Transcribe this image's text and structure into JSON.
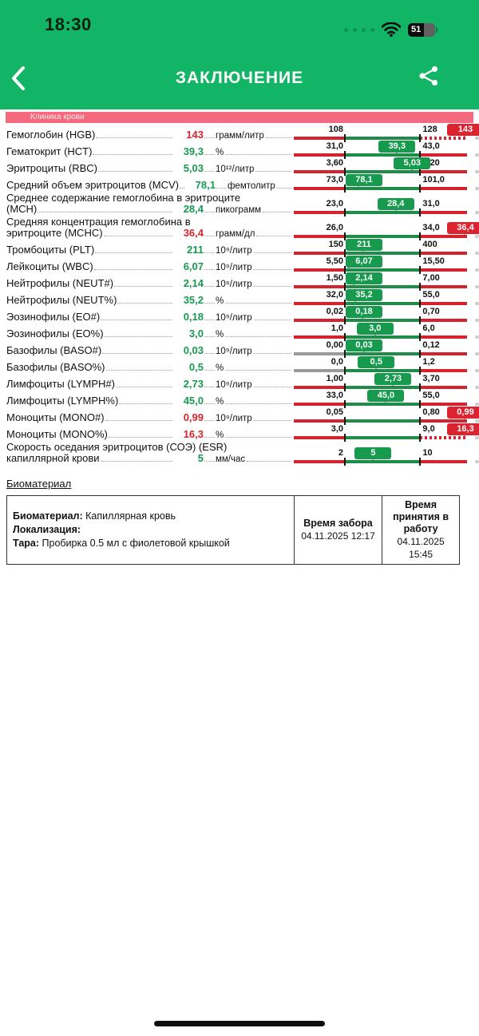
{
  "status_bar": {
    "time": "18:30",
    "battery_percent": "51"
  },
  "header": {
    "title": "ЗАКЛЮЧЕНИЕ"
  },
  "section": {
    "title": "Клиника крови"
  },
  "colors": {
    "accent_green": "#12b465",
    "band_pink": "#f4697d",
    "bar_red": "#d5232d",
    "bar_gray": "#9a9a9a",
    "bar_green": "#1e8c46",
    "badge_green": "#179a4e",
    "badge_red": "#dc2430",
    "value_green": "#179a50",
    "value_red": "#d6252e"
  },
  "rows": [
    {
      "name_lines": [
        "Гемоглобин (HGB)"
      ],
      "value": "143",
      "value_num": 143,
      "status": "high",
      "overflow_dotted": true,
      "left_gray": false,
      "unit": "грамм/литр",
      "min": "108",
      "max": "128",
      "min_num": 108,
      "max_num": 128
    },
    {
      "name_lines": [
        "Гематокрит (HCT)"
      ],
      "value": "39,3",
      "value_num": 39.3,
      "status": "normal",
      "overflow_dotted": false,
      "left_gray": false,
      "unit": "%",
      "min": "31,0",
      "max": "43,0",
      "min_num": 31.0,
      "max_num": 43.0
    },
    {
      "name_lines": [
        "Эритроциты (RBC)"
      ],
      "value": "5,03",
      "value_num": 5.03,
      "status": "normal",
      "overflow_dotted": false,
      "left_gray": false,
      "unit": "10¹²/литр",
      "min": "3,60",
      "max": "5,20",
      "min_num": 3.6,
      "max_num": 5.2
    },
    {
      "name_lines": [
        "Средний объем эритроцитов (MCV)"
      ],
      "value": "78,1",
      "value_num": 78.1,
      "status": "normal",
      "overflow_dotted": false,
      "left_gray": false,
      "unit": "фемтолитр",
      "min": "73,0",
      "max": "101,0",
      "min_num": 73.0,
      "max_num": 101.0
    },
    {
      "name_lines": [
        "Среднее содержание гемоглобина в эритроците",
        "(MCH)"
      ],
      "value": "28,4",
      "value_num": 28.4,
      "status": "normal",
      "overflow_dotted": false,
      "left_gray": false,
      "unit": "пикограмм",
      "min": "23,0",
      "max": "31,0",
      "min_num": 23.0,
      "max_num": 31.0
    },
    {
      "name_lines": [
        "Средняя концентрация гемоглобина в",
        "эритроците (MCHC)"
      ],
      "value": "36,4",
      "value_num": 36.4,
      "status": "high",
      "overflow_dotted": false,
      "left_gray": false,
      "unit": "грамм/дл",
      "min": "26,0",
      "max": "34,0",
      "min_num": 26.0,
      "max_num": 34.0
    },
    {
      "name_lines": [
        "Тромбоциты (PLT)"
      ],
      "value": "211",
      "value_num": 211,
      "status": "normal",
      "overflow_dotted": false,
      "left_gray": false,
      "unit": "10⁹/литр",
      "min": "150",
      "max": "400",
      "min_num": 150,
      "max_num": 400
    },
    {
      "name_lines": [
        "Лейкоциты (WBC)"
      ],
      "value": "6,07",
      "value_num": 6.07,
      "status": "normal",
      "overflow_dotted": false,
      "left_gray": false,
      "unit": "10⁹/литр",
      "min": "5,50",
      "max": "15,50",
      "min_num": 5.5,
      "max_num": 15.5
    },
    {
      "name_lines": [
        "Нейтрофилы (NEUT#)"
      ],
      "value": "2,14",
      "value_num": 2.14,
      "status": "normal",
      "overflow_dotted": false,
      "left_gray": false,
      "unit": "10⁹/литр",
      "min": "1,50",
      "max": "7,00",
      "min_num": 1.5,
      "max_num": 7.0
    },
    {
      "name_lines": [
        "Нейтрофилы (NEUT%)"
      ],
      "value": "35,2",
      "value_num": 35.2,
      "status": "normal",
      "overflow_dotted": false,
      "left_gray": false,
      "unit": "%",
      "min": "32,0",
      "max": "55,0",
      "min_num": 32.0,
      "max_num": 55.0
    },
    {
      "name_lines": [
        "Эозинофилы (EO#)"
      ],
      "value": "0,18",
      "value_num": 0.18,
      "status": "normal",
      "overflow_dotted": false,
      "left_gray": false,
      "unit": "10⁹/литр",
      "min": "0,02",
      "max": "0,70",
      "min_num": 0.02,
      "max_num": 0.7
    },
    {
      "name_lines": [
        "Эозинофилы (EO%)"
      ],
      "value": "3,0",
      "value_num": 3.0,
      "status": "normal",
      "overflow_dotted": false,
      "left_gray": false,
      "unit": "%",
      "min": "1,0",
      "max": "6,0",
      "min_num": 1.0,
      "max_num": 6.0
    },
    {
      "name_lines": [
        "Базофилы (BASO#)"
      ],
      "value": "0,03",
      "value_num": 0.03,
      "status": "normal",
      "overflow_dotted": false,
      "left_gray": true,
      "unit": "10⁹/литр",
      "min": "0,00",
      "max": "0,12",
      "min_num": 0.0,
      "max_num": 0.12
    },
    {
      "name_lines": [
        "Базофилы (BASO%)"
      ],
      "value": "0,5",
      "value_num": 0.5,
      "status": "normal",
      "overflow_dotted": false,
      "left_gray": true,
      "unit": "%",
      "min": "0,0",
      "max": "1,2",
      "min_num": 0.0,
      "max_num": 1.2
    },
    {
      "name_lines": [
        "Лимфоциты (LYMPH#)"
      ],
      "value": "2,73",
      "value_num": 2.73,
      "status": "normal",
      "overflow_dotted": false,
      "left_gray": false,
      "unit": "10⁹/литр",
      "min": "1,00",
      "max": "3,70",
      "min_num": 1.0,
      "max_num": 3.7
    },
    {
      "name_lines": [
        "Лимфоциты (LYMPH%)"
      ],
      "value": "45,0",
      "value_num": 45.0,
      "status": "normal",
      "overflow_dotted": false,
      "left_gray": false,
      "unit": "%",
      "min": "33,0",
      "max": "55,0",
      "min_num": 33.0,
      "max_num": 55.0
    },
    {
      "name_lines": [
        "Моноциты (MONO#)"
      ],
      "value": "0,99",
      "value_num": 0.99,
      "status": "high",
      "overflow_dotted": false,
      "left_gray": false,
      "unit": "10⁹/литр",
      "min": "0,05",
      "max": "0,80",
      "min_num": 0.05,
      "max_num": 0.8
    },
    {
      "name_lines": [
        "Моноциты (MONO%)"
      ],
      "value": "16,3",
      "value_num": 16.3,
      "status": "high",
      "overflow_dotted": true,
      "left_gray": false,
      "unit": "%",
      "min": "3,0",
      "max": "9,0",
      "min_num": 3.0,
      "max_num": 9.0
    },
    {
      "name_lines": [
        "Скорость оседания эритроцитов (СОЭ) (ESR)",
        "капиллярной крови"
      ],
      "value": "5",
      "value_num": 5,
      "status": "normal",
      "overflow_dotted": false,
      "left_gray": false,
      "unit": "мм/час",
      "min": "2",
      "max": "10",
      "min_num": 2,
      "max_num": 10
    }
  ],
  "biomaterial": {
    "heading": "Биоматериал",
    "info": [
      {
        "label": "Биоматериал:",
        "value": " Капиллярная кровь"
      },
      {
        "label": "Локализация:",
        "value": ""
      },
      {
        "label": "Тара:",
        "value": " Пробирка 0.5 мл с фиолетовой крышкой"
      }
    ],
    "col2": {
      "title": "Время забора",
      "value": "04.11.2025 12:17"
    },
    "col3": {
      "title": "Время принятия в работу",
      "value": "04.11.2025 15:45"
    }
  }
}
